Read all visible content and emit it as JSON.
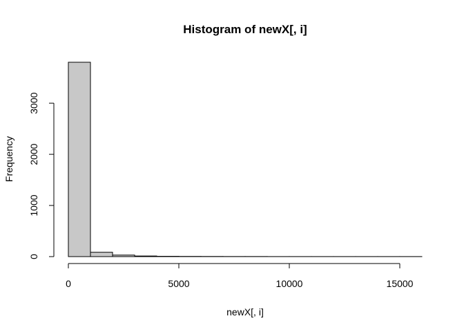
{
  "chart_data": {
    "type": "bar",
    "title": "Histogram of newX[, i]",
    "xlabel": "newX[, i]",
    "ylabel": "Frequency",
    "bin_edges": [
      0,
      1000,
      2000,
      3000,
      4000,
      5000,
      6000,
      7000,
      8000,
      9000,
      10000,
      11000,
      12000,
      13000,
      14000,
      15000,
      16000
    ],
    "values": [
      3800,
      85,
      30,
      12,
      6,
      4,
      3,
      2,
      2,
      1,
      1,
      1,
      1,
      1,
      1,
      1
    ],
    "xlim": [
      0,
      16000
    ],
    "ylim": [
      0,
      3800
    ],
    "xticks": [
      0,
      5000,
      10000,
      15000
    ],
    "yticks": [
      0,
      1000,
      2000,
      3000
    ],
    "bar_color": "#c8c8c8",
    "grid": false,
    "legend": "none"
  }
}
